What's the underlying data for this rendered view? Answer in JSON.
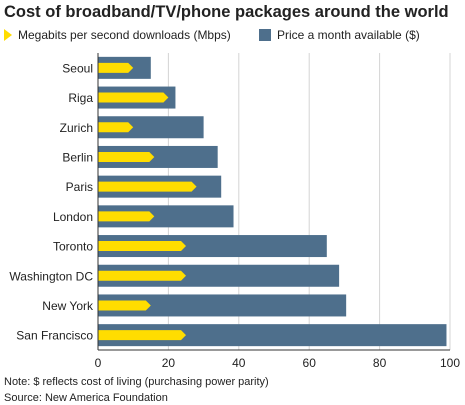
{
  "colors": {
    "downloads": "#ffdd00",
    "price": "#4e6f8c",
    "grid": "#d4d4d4",
    "axis": "#333333"
  },
  "chart_data": {
    "type": "bar",
    "orientation": "horizontal",
    "title": "Cost of broadband/TV/phone packages around the world",
    "categories": [
      "Seoul",
      "Riga",
      "Zurich",
      "Berlin",
      "Paris",
      "London",
      "Toronto",
      "Washington DC",
      "New York",
      "San Francisco"
    ],
    "series": [
      {
        "name": "Price a month available ($)",
        "color": "#4e6f8c",
        "values": [
          15,
          22,
          30,
          34,
          35,
          38.5,
          65,
          68.5,
          70.5,
          99
        ]
      },
      {
        "name": "Megabits per second downloads (Mbps)",
        "color": "#ffdd00",
        "values": [
          10,
          20,
          10,
          16,
          28,
          16,
          25,
          25,
          15,
          25
        ]
      }
    ],
    "xlim": [
      0,
      100
    ],
    "xticks": [
      0,
      20,
      40,
      60,
      80,
      100
    ],
    "xtick_labels": [
      "0",
      "20",
      "40",
      "60",
      "80",
      "100"
    ],
    "grid": "vertical",
    "legend_position": "top"
  },
  "notes": {
    "note": "Note: $ reflects cost of living (purchasing power parity)",
    "source": "Source: New America Foundation"
  }
}
